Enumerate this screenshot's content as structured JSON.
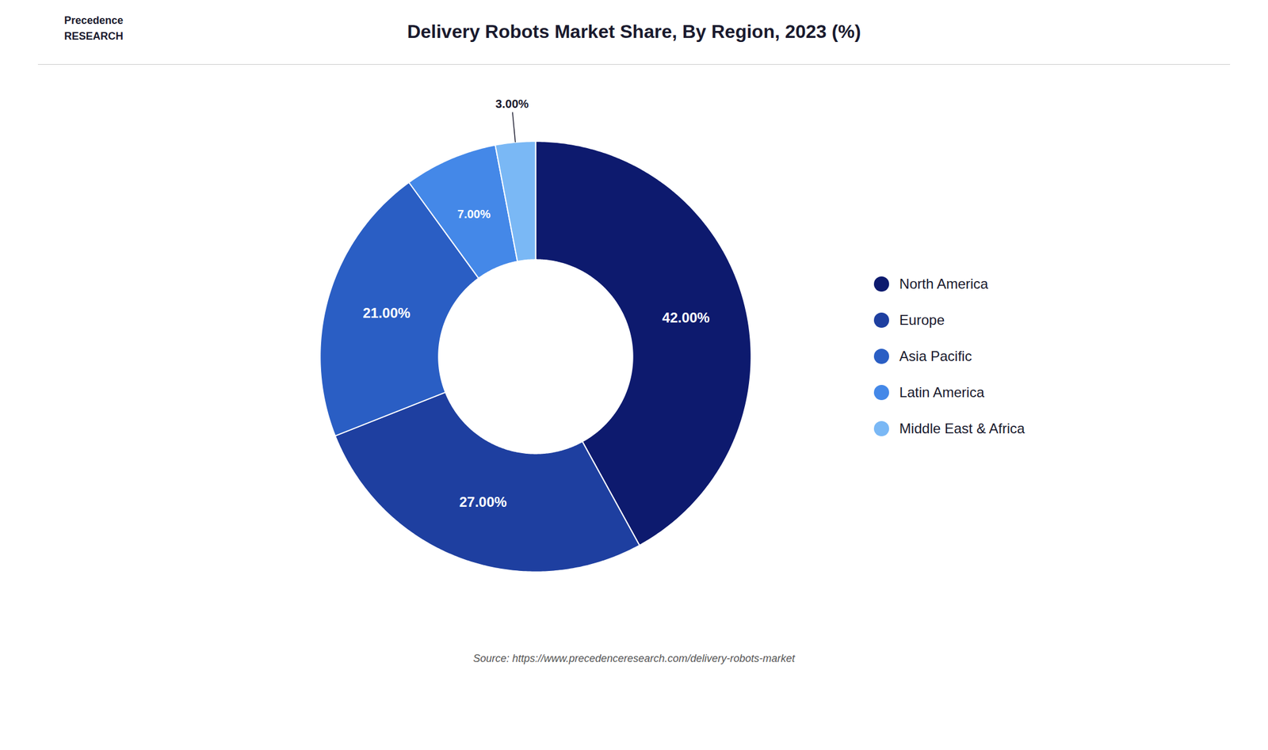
{
  "chart_data": {
    "type": "pie",
    "title": "Delivery Robots Market Share, By Region, 2023 (%)",
    "categories": [
      "North America",
      "Europe",
      "Asia Pacific",
      "Latin America",
      "Middle East & Africa"
    ],
    "values": [
      42.0,
      27.0,
      21.0,
      7.0,
      3.0
    ],
    "value_labels": [
      "42.00%",
      "27.00%",
      "21.00%",
      "7.00%",
      "3.00%"
    ],
    "colors": [
      "#0d1a6e",
      "#1e3fa0",
      "#2a5ec4",
      "#4488e8",
      "#7ab8f5"
    ],
    "data_labels": true,
    "legend": "right",
    "annotations": [
      "Precedence\nRESEARCH",
      "Source: https://www.precedenceresearch.com/delivery-robots-market"
    ]
  }
}
